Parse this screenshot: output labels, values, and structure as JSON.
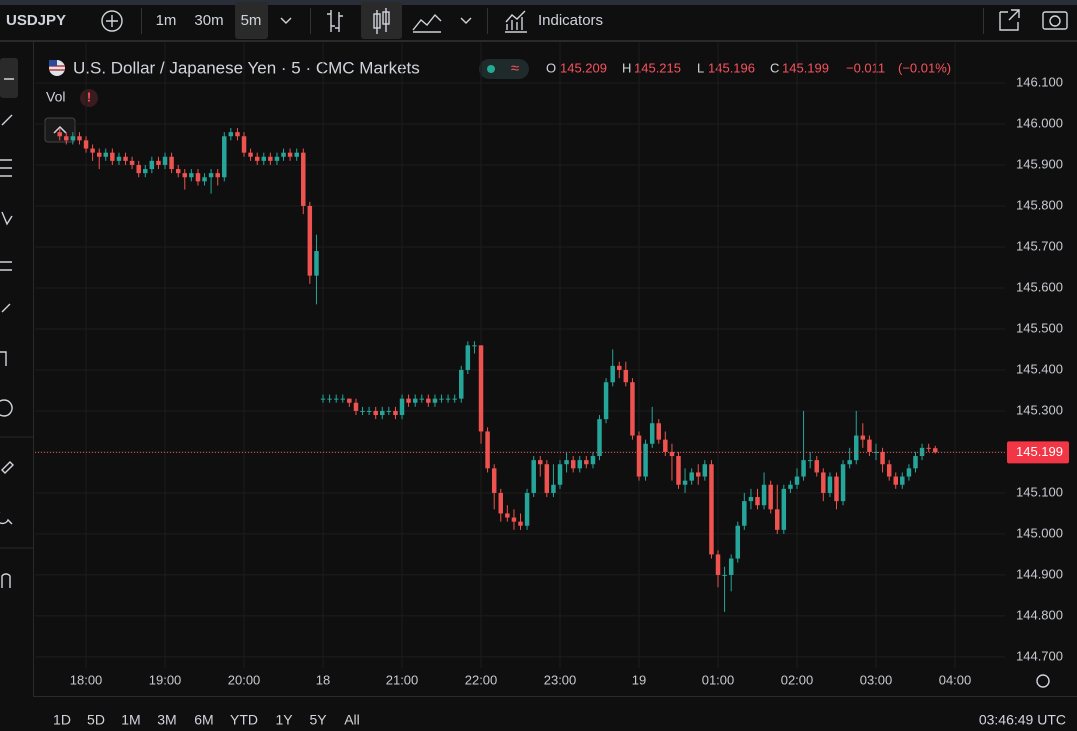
{
  "ui": {
    "symbol": "USDJPY",
    "intervals": [
      "1m",
      "30m",
      "5m"
    ],
    "indicators": "Indicators",
    "vol": "Vol",
    "alert": "!",
    "wave": "≈",
    "ranges": [
      "1D",
      "5D",
      "1M",
      "3M",
      "6M",
      "YTD",
      "1Y",
      "5Y",
      "All"
    ],
    "clock": "03:46:49 UTC"
  },
  "chart_data": {
    "type": "candlestick",
    "title": "U.S. Dollar / Japanese Yen · 5 · CMC Markets",
    "legend": {
      "open_label": "O",
      "high_label": "H",
      "low_label": "L",
      "close_label": "C",
      "change": "−0.011",
      "change_pct": "(−0.01%)"
    },
    "up_color": "#26a69a",
    "down_color": "#ef5350",
    "grid": true,
    "xlim": [
      17.354,
      29.633
    ],
    "xticks": [
      {
        "value": 18,
        "label": "18:00"
      },
      {
        "value": 19,
        "label": "19:00"
      },
      {
        "value": 20,
        "label": "20:00"
      },
      {
        "value": 21,
        "label": "18"
      },
      {
        "value": 22,
        "label": "21:00"
      },
      {
        "value": 23,
        "label": "22:00"
      },
      {
        "value": 24,
        "label": "23:00"
      },
      {
        "value": 25,
        "label": "19"
      },
      {
        "value": 26,
        "label": "01:00"
      },
      {
        "value": 27,
        "label": "02:00"
      },
      {
        "value": 28,
        "label": "03:00"
      },
      {
        "value": 29,
        "label": "04:00"
      }
    ],
    "ylim": [
      144.673,
      146.156
    ],
    "yticks": [
      {
        "value": 144.7,
        "label": "144.700"
      },
      {
        "value": 144.8,
        "label": "144.800"
      },
      {
        "value": 144.9,
        "label": "144.900"
      },
      {
        "value": 145.0,
        "label": "145.000"
      },
      {
        "value": 145.1,
        "label": "145.100"
      },
      {
        "value": 145.2,
        "label": "145.200"
      },
      {
        "value": 145.3,
        "label": "145.300"
      },
      {
        "value": 145.4,
        "label": "145.400"
      },
      {
        "value": 145.5,
        "label": "145.500"
      },
      {
        "value": 145.6,
        "label": "145.600"
      },
      {
        "value": 145.7,
        "label": "145.700"
      },
      {
        "value": 145.8,
        "label": "145.800"
      },
      {
        "value": 145.9,
        "label": "145.900"
      },
      {
        "value": 146.0,
        "label": "146.000"
      },
      {
        "value": 146.1,
        "label": "146.100"
      }
    ],
    "x": [
      17.667,
      17.75,
      17.833,
      17.917,
      18,
      18.083,
      18.167,
      18.25,
      18.333,
      18.417,
      18.5,
      18.583,
      18.667,
      18.75,
      18.833,
      18.917,
      19,
      19.083,
      19.167,
      19.25,
      19.333,
      19.417,
      19.5,
      19.583,
      19.667,
      19.75,
      19.833,
      19.917,
      20,
      20.083,
      20.167,
      20.25,
      20.333,
      20.417,
      20.5,
      20.583,
      20.667,
      20.75,
      20.833,
      20.917,
      21,
      21.083,
      21.167,
      21.25,
      21.333,
      21.417,
      21.5,
      21.583,
      21.667,
      21.75,
      21.833,
      21.917,
      22,
      22.083,
      22.167,
      22.25,
      22.333,
      22.417,
      22.5,
      22.583,
      22.667,
      22.75,
      22.833,
      22.917,
      23,
      23.083,
      23.167,
      23.25,
      23.333,
      23.417,
      23.5,
      23.583,
      23.667,
      23.75,
      23.833,
      23.917,
      24,
      24.083,
      24.167,
      24.25,
      24.333,
      24.417,
      24.5,
      24.583,
      24.667,
      24.75,
      24.833,
      24.917,
      25,
      25.083,
      25.167,
      25.25,
      25.333,
      25.417,
      25.5,
      25.583,
      25.667,
      25.75,
      25.833,
      25.917,
      26,
      26.083,
      26.167,
      26.25,
      26.333,
      26.417,
      26.5,
      26.583,
      26.667,
      26.75,
      26.833,
      26.917,
      27,
      27.083,
      27.167,
      27.25,
      27.333,
      27.417,
      27.5,
      27.583,
      27.667,
      27.75,
      27.833,
      27.917,
      28,
      28.083,
      28.167,
      28.25,
      28.333,
      28.417,
      28.5,
      28.583,
      28.667,
      28.75
    ],
    "open": [
      145.98,
      145.97,
      145.96,
      145.97,
      145.96,
      145.94,
      145.93,
      145.92,
      145.93,
      145.91,
      145.92,
      145.91,
      145.9,
      145.88,
      145.89,
      145.91,
      145.9,
      145.92,
      145.89,
      145.88,
      145.87,
      145.88,
      145.86,
      145.87,
      145.88,
      145.87,
      145.97,
      145.98,
      145.97,
      145.93,
      145.92,
      145.91,
      145.92,
      145.91,
      145.92,
      145.93,
      145.92,
      145.93,
      145.8,
      145.63,
      145.33,
      145.33,
      145.33,
      145.33,
      145.33,
      145.32,
      145.3,
      145.3,
      145.3,
      145.29,
      145.3,
      145.3,
      145.29,
      145.33,
      145.32,
      145.33,
      145.33,
      145.32,
      145.33,
      145.33,
      145.33,
      145.33,
      145.4,
      145.46,
      145.46,
      145.25,
      145.16,
      145.1,
      145.05,
      145.04,
      145.03,
      145.02,
      145.1,
      145.18,
      145.17,
      145.1,
      145.12,
      145.17,
      145.18,
      145.16,
      145.18,
      145.17,
      145.19,
      145.28,
      145.37,
      145.41,
      145.4,
      145.37,
      145.24,
      145.14,
      145.22,
      145.27,
      145.23,
      145.2,
      145.19,
      145.12,
      145.13,
      145.15,
      145.14,
      145.17,
      144.95,
      144.9,
      144.9,
      144.94,
      145.02,
      145.08,
      145.09,
      145.07,
      145.12,
      145.06,
      145.01,
      145.11,
      145.12,
      145.14,
      145.18,
      145.18,
      145.15,
      145.1,
      145.14,
      145.08,
      145.17,
      145.18,
      145.24,
      145.23,
      145.2,
      145.2,
      145.17,
      145.14,
      145.12,
      145.14,
      145.16,
      145.19,
      145.21,
      145.209
    ],
    "high": [
      145.99,
      145.98,
      145.98,
      145.98,
      145.97,
      145.95,
      145.94,
      145.94,
      145.94,
      145.93,
      145.93,
      145.92,
      145.91,
      145.9,
      145.92,
      145.92,
      145.93,
      145.93,
      145.9,
      145.89,
      145.89,
      145.89,
      145.88,
      145.89,
      145.89,
      145.98,
      145.99,
      145.99,
      145.98,
      145.94,
      145.93,
      145.93,
      145.93,
      145.93,
      145.94,
      145.94,
      145.94,
      145.94,
      145.81,
      145.73,
      145.34,
      145.34,
      145.34,
      145.34,
      145.33,
      145.33,
      145.31,
      145.31,
      145.31,
      145.31,
      145.31,
      145.31,
      145.34,
      145.34,
      145.34,
      145.34,
      145.34,
      145.34,
      145.34,
      145.34,
      145.34,
      145.41,
      145.47,
      145.47,
      145.46,
      145.26,
      145.17,
      145.11,
      145.07,
      145.06,
      145.05,
      145.11,
      145.19,
      145.19,
      145.18,
      145.17,
      145.18,
      145.2,
      145.19,
      145.19,
      145.19,
      145.2,
      145.29,
      145.38,
      145.45,
      145.42,
      145.42,
      145.38,
      145.25,
      145.23,
      145.31,
      145.28,
      145.25,
      145.22,
      145.2,
      145.16,
      145.16,
      145.17,
      145.18,
      145.18,
      144.96,
      144.92,
      144.95,
      145.03,
      145.1,
      145.11,
      145.11,
      145.15,
      145.13,
      145.12,
      145.12,
      145.13,
      145.16,
      145.3,
      145.2,
      145.19,
      145.16,
      145.15,
      145.15,
      145.18,
      145.21,
      145.3,
      145.27,
      145.24,
      145.22,
      145.21,
      145.18,
      145.15,
      145.15,
      145.17,
      145.2,
      145.22,
      145.22,
      145.215
    ],
    "low": [
      145.96,
      145.95,
      145.95,
      145.95,
      145.93,
      145.91,
      145.89,
      145.91,
      145.9,
      145.9,
      145.9,
      145.89,
      145.87,
      145.87,
      145.88,
      145.89,
      145.89,
      145.88,
      145.87,
      145.84,
      145.86,
      145.85,
      145.85,
      145.83,
      145.85,
      145.86,
      145.96,
      145.96,
      145.92,
      145.91,
      145.9,
      145.9,
      145.9,
      145.9,
      145.91,
      145.91,
      145.91,
      145.78,
      145.61,
      145.56,
      145.32,
      145.32,
      145.32,
      145.32,
      145.31,
      145.29,
      145.29,
      145.29,
      145.28,
      145.28,
      145.29,
      145.28,
      145.28,
      145.31,
      145.31,
      145.32,
      145.31,
      145.31,
      145.32,
      145.32,
      145.32,
      145.32,
      145.39,
      145.44,
      145.22,
      145.15,
      145.06,
      145.03,
      145.03,
      145.01,
      145.01,
      145.01,
      145.09,
      145.14,
      145.09,
      145.09,
      145.11,
      145.15,
      145.15,
      145.15,
      145.16,
      145.16,
      145.18,
      145.27,
      145.36,
      145.38,
      145.36,
      145.23,
      145.13,
      145.13,
      145.21,
      145.22,
      145.19,
      145.13,
      145.11,
      145.1,
      145.12,
      145.12,
      145.13,
      144.94,
      144.87,
      144.81,
      144.86,
      144.93,
      145.01,
      145.06,
      145.06,
      145.06,
      145.05,
      145.0,
      145.0,
      145.1,
      145.11,
      145.13,
      145.16,
      145.14,
      145.08,
      145.09,
      145.06,
      145.07,
      145.16,
      145.17,
      145.21,
      145.19,
      145.18,
      145.15,
      145.13,
      145.11,
      145.11,
      145.13,
      145.15,
      145.18,
      145.2,
      145.196
    ],
    "close": [
      145.97,
      145.96,
      145.97,
      145.96,
      145.94,
      145.93,
      145.92,
      145.93,
      145.91,
      145.92,
      145.91,
      145.9,
      145.88,
      145.89,
      145.91,
      145.9,
      145.92,
      145.89,
      145.88,
      145.87,
      145.88,
      145.86,
      145.87,
      145.88,
      145.87,
      145.97,
      145.98,
      145.97,
      145.93,
      145.92,
      145.91,
      145.92,
      145.91,
      145.92,
      145.93,
      145.92,
      145.93,
      145.8,
      145.63,
      145.69,
      145.33,
      145.33,
      145.33,
      145.33,
      145.32,
      145.3,
      145.3,
      145.3,
      145.29,
      145.3,
      145.3,
      145.29,
      145.33,
      145.32,
      145.33,
      145.33,
      145.32,
      145.33,
      145.33,
      145.33,
      145.33,
      145.4,
      145.46,
      145.46,
      145.25,
      145.16,
      145.1,
      145.05,
      145.04,
      145.03,
      145.02,
      145.1,
      145.18,
      145.17,
      145.1,
      145.12,
      145.17,
      145.18,
      145.16,
      145.18,
      145.17,
      145.19,
      145.28,
      145.37,
      145.41,
      145.4,
      145.37,
      145.24,
      145.14,
      145.22,
      145.27,
      145.23,
      145.2,
      145.19,
      145.12,
      145.13,
      145.15,
      145.14,
      145.17,
      144.95,
      144.9,
      144.9,
      144.94,
      145.02,
      145.08,
      145.09,
      145.07,
      145.12,
      145.06,
      145.01,
      145.11,
      145.12,
      145.14,
      145.18,
      145.18,
      145.15,
      145.1,
      145.14,
      145.08,
      145.17,
      145.18,
      145.24,
      145.23,
      145.2,
      145.2,
      145.17,
      145.14,
      145.12,
      145.14,
      145.16,
      145.19,
      145.21,
      145.209,
      145.199
    ]
  }
}
